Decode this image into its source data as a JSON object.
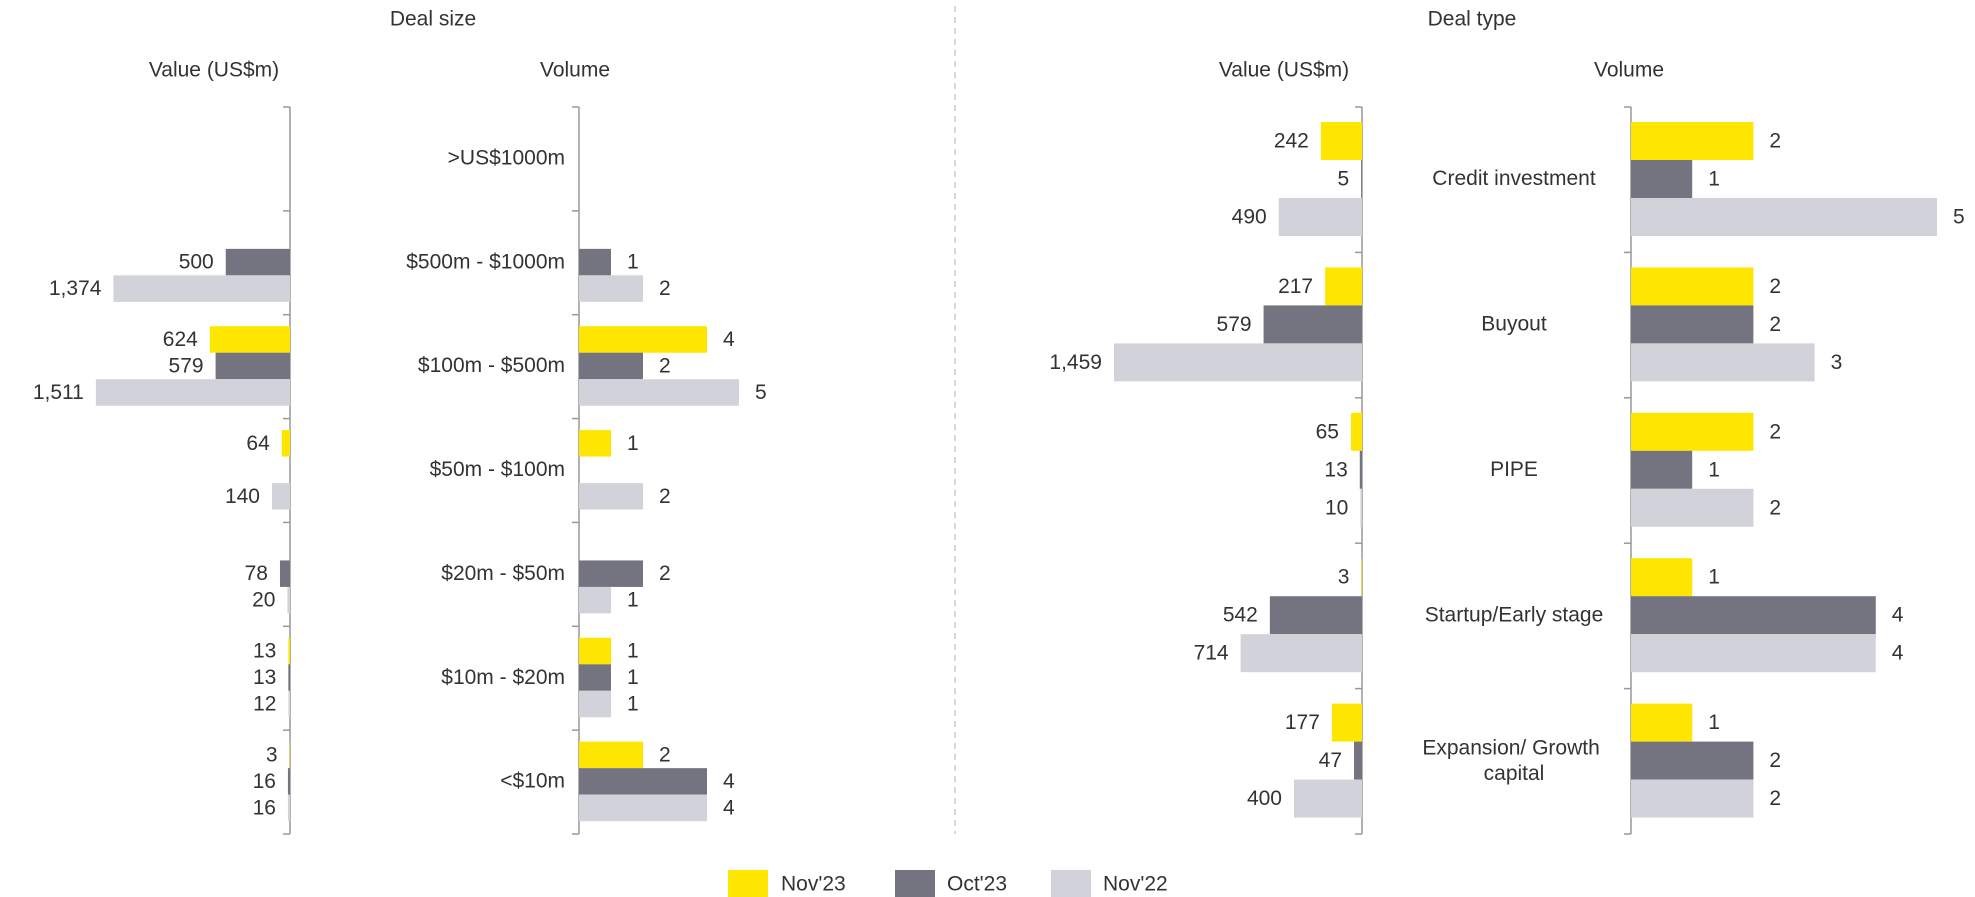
{
  "headers": [
    "Deal size",
    "Deal type"
  ],
  "chart_data": [
    {
      "type": "hbar",
      "direction": "left",
      "title": "Value (US$m)",
      "xlim": [
        0,
        2000
      ],
      "series": [
        {
          "name": "Nov'23",
          "color": "#ffe600",
          "values": [
            null,
            null,
            624,
            64,
            null,
            13,
            3
          ]
        },
        {
          "name": "Oct'23",
          "color": "#747480",
          "values": [
            null,
            500,
            579,
            null,
            78,
            13,
            16
          ]
        },
        {
          "name": "Nov'22",
          "color": "#d2d2da",
          "values": [
            null,
            1374,
            1511,
            140,
            20,
            12,
            16
          ],
          "value_labels": [
            null,
            "1,374",
            "1,511",
            "140",
            "20",
            "12",
            "16"
          ]
        }
      ]
    },
    {
      "type": "hbar",
      "direction": "right",
      "title": "Volume",
      "xlim": [
        0,
        5
      ],
      "categories": [
        ">US$1000m",
        "$500m - $1000m",
        "$100m - $500m",
        "$50m - $100m",
        "$20m - $50m",
        "$10m - $20m",
        "<$10m"
      ],
      "series": [
        {
          "color": "#ffe600",
          "values": [
            null,
            null,
            4,
            1,
            null,
            1,
            2
          ]
        },
        {
          "color": "#747480",
          "values": [
            null,
            1,
            2,
            null,
            2,
            1,
            4
          ]
        },
        {
          "color": "#d2d2da",
          "values": [
            null,
            2,
            5,
            2,
            1,
            1,
            4
          ]
        }
      ]
    },
    {
      "type": "hbar",
      "direction": "left",
      "title": "Value (US$m)",
      "xlim": [
        0,
        1500
      ],
      "series": [
        {
          "color": "#ffe600",
          "values": [
            242,
            217,
            65,
            3,
            177
          ]
        },
        {
          "color": "#747480",
          "values": [
            5,
            579,
            13,
            542,
            47
          ]
        },
        {
          "color": "#d2d2da",
          "values": [
            490,
            1459,
            10,
            714,
            400
          ],
          "value_labels": [
            "490",
            "1,459",
            "10",
            "714",
            "400"
          ]
        }
      ]
    },
    {
      "type": "hbar",
      "direction": "right",
      "title": "Volume",
      "xlim": [
        0,
        5
      ],
      "categories": [
        "Credit investment",
        "Buyout",
        "PIPE",
        "Startup/Early stage",
        "Expansion/ Growth capital"
      ],
      "series": [
        {
          "color": "#ffe600",
          "values": [
            2,
            2,
            2,
            1,
            1
          ]
        },
        {
          "color": "#747480",
          "values": [
            1,
            2,
            1,
            4,
            2
          ]
        },
        {
          "color": "#d2d2da",
          "values": [
            5,
            3,
            2,
            4,
            2
          ]
        }
      ]
    }
  ]
}
